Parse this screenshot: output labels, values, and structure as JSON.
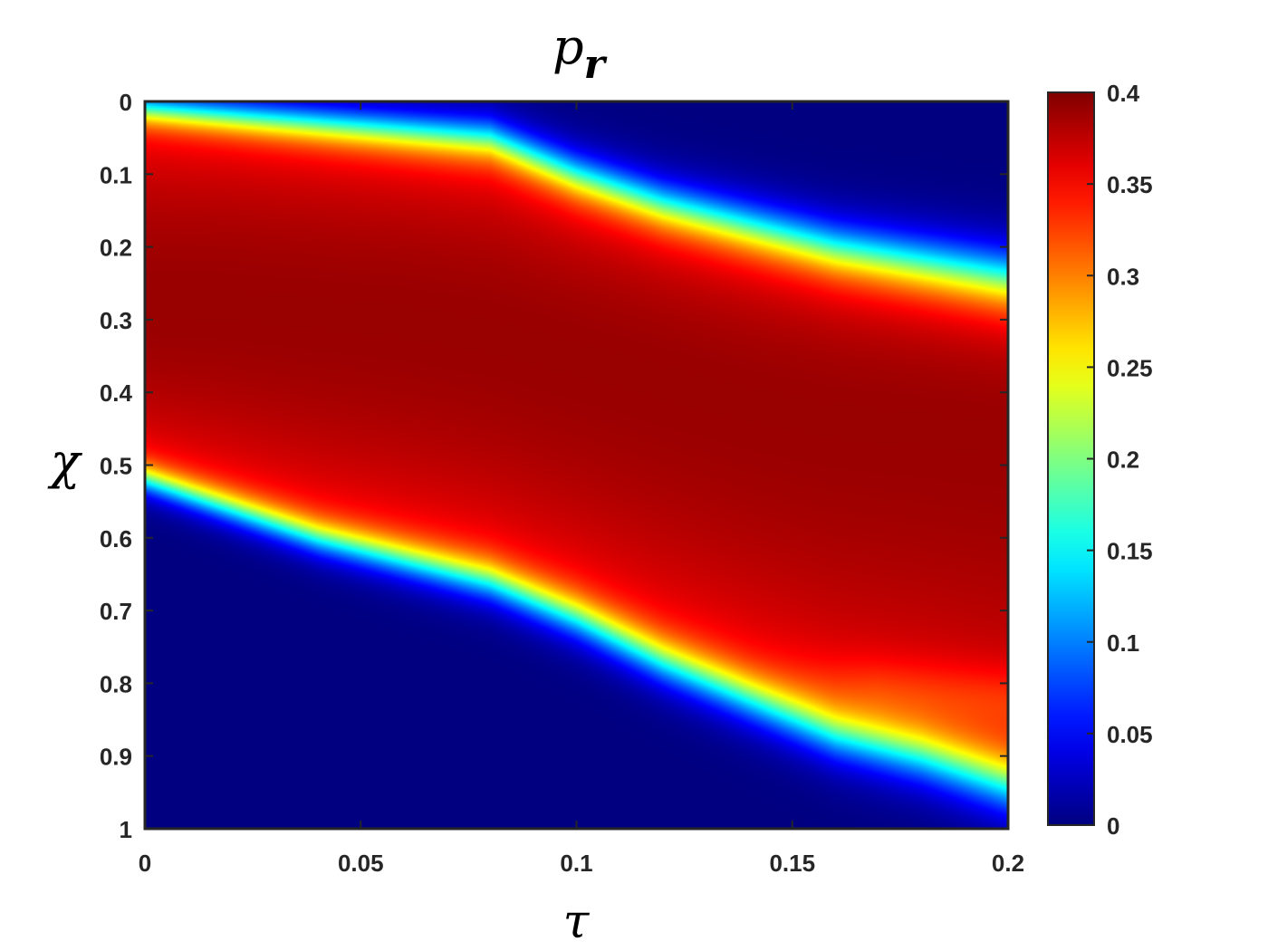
{
  "chart_data": {
    "type": "heatmap",
    "title": "p",
    "title_subscript": "r",
    "xlabel": "τ",
    "ylabel": "χ",
    "xlim": [
      0,
      0.2
    ],
    "ylim": [
      1,
      0
    ],
    "x_ticks": [
      "0",
      "0.05",
      "0.1",
      "0.15",
      "0.2"
    ],
    "y_ticks": [
      "0",
      "0.1",
      "0.2",
      "0.3",
      "0.4",
      "0.5",
      "0.6",
      "0.7",
      "0.8",
      "0.9",
      "1"
    ],
    "colorbar": {
      "range": [
        0,
        0.4
      ],
      "ticks": [
        "0",
        "0.05",
        "0.1",
        "0.15",
        "0.2",
        "0.25",
        "0.3",
        "0.35",
        "0.4"
      ],
      "colormap": "jet"
    },
    "grid": false,
    "tau": [
      0,
      0.02,
      0.04,
      0.06,
      0.08,
      0.1,
      0.12,
      0.14,
      0.16,
      0.18,
      0.2
    ],
    "band_upper_edge_chi": [
      0.01,
      0.02,
      0.03,
      0.04,
      0.05,
      0.1,
      0.14,
      0.17,
      0.2,
      0.22,
      0.24
    ],
    "band_lower_edge_chi": [
      0.52,
      0.56,
      0.6,
      0.63,
      0.66,
      0.71,
      0.77,
      0.82,
      0.87,
      0.9,
      0.94
    ],
    "peak_value_chi": [
      0.28,
      0.28,
      0.29,
      0.3,
      0.32,
      0.35,
      0.38,
      0.41,
      0.43,
      0.44,
      0.45
    ],
    "peak_value": 0.39,
    "secondary_lobe_chi": [
      0.81,
      0.83
    ],
    "secondary_lobe_tau": [
      0.15,
      0.2
    ],
    "secondary_lobe_value": 0.33
  }
}
